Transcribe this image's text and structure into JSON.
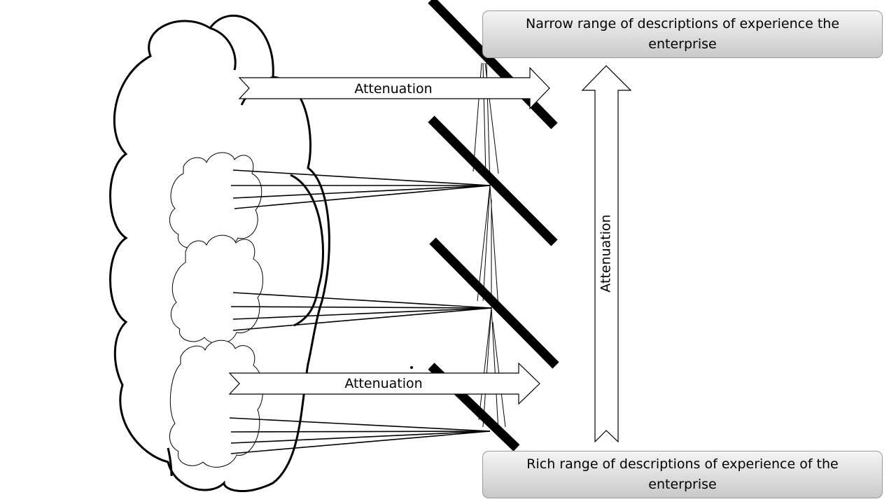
{
  "top_box": {
    "text": "Narrow range of descriptions of experience the enterprise"
  },
  "bottom_box": {
    "text": "Rich range of descriptions of experience of the enterprise"
  },
  "arrows": {
    "upper_label": "Attenuation",
    "lower_label": "Attenuation",
    "vertical_label": "Attenuation"
  }
}
